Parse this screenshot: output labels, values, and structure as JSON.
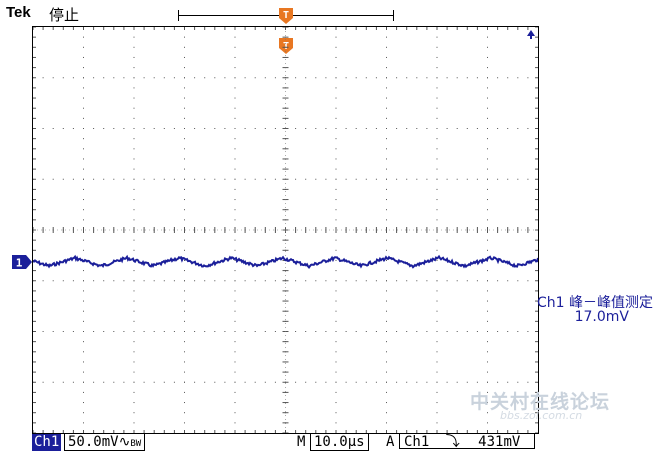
{
  "header": {
    "brand": "Tek",
    "status": "停止",
    "trigger_position_marker": "T",
    "trigger_marker_color": "#e87722"
  },
  "channel": {
    "marker": "1",
    "color": "#1b1f9a"
  },
  "measurement": {
    "label": "Ch1 峰－峰值测定",
    "value": "17.0mV"
  },
  "statusbar": {
    "channel": "Ch1",
    "volts_div": "50.0mV",
    "bw_symbol": "∿",
    "bw_label": "BW",
    "timebase_label": "M",
    "time_div": "10.0µs",
    "trigger_label": "A",
    "trigger_source": "Ch1",
    "trigger_slope_symbol": "⤵",
    "trigger_level": "431mV"
  },
  "watermark": {
    "text": "中关村在线论坛",
    "url": "bbs.zol.com.cn"
  }
}
